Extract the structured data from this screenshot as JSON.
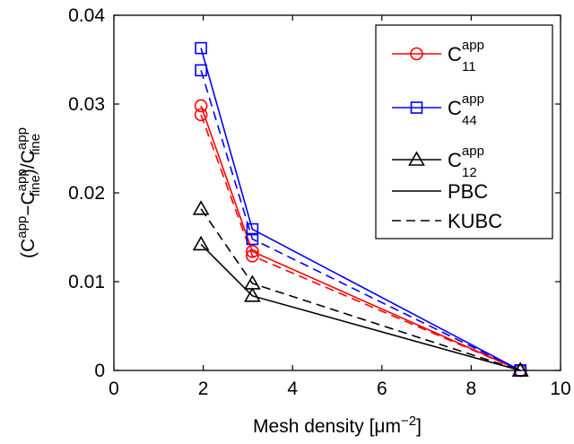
{
  "chart_data": {
    "type": "line",
    "xlabel": "Mesh density [μm",
    "xlabel_sup": "−2",
    "xlabel_end": "]",
    "ylabel_parts": [
      "(C",
      "app",
      "−C",
      "app",
      "fine",
      ")/C",
      "app",
      "fine"
    ],
    "xlim": [
      0,
      10
    ],
    "ylim": [
      0,
      0.04
    ],
    "xticks": [
      "0",
      "2",
      "4",
      "6",
      "8",
      "10"
    ],
    "yticks": [
      "0",
      "0.01",
      "0.02",
      "0.03",
      "0.04"
    ],
    "grid": false,
    "legend_position": "top-right",
    "series": [
      {
        "name": "C11",
        "legend_main": "C",
        "legend_sup": "app",
        "legend_sub": "11",
        "color": "#ff0000",
        "marker": "circle",
        "linestyle": "solid",
        "bc": "PBC",
        "x": [
          1.95,
          3.1,
          9.1
        ],
        "y": [
          0.0298,
          0.0134,
          0.0
        ]
      },
      {
        "name": "C11",
        "color": "#ff0000",
        "marker": "circle",
        "linestyle": "dashed",
        "bc": "KUBC",
        "x": [
          1.95,
          3.1,
          9.1
        ],
        "y": [
          0.0288,
          0.0129,
          0.0
        ]
      },
      {
        "name": "C44",
        "legend_main": "C",
        "legend_sup": "app",
        "legend_sub": "44",
        "color": "#0000ff",
        "marker": "square",
        "linestyle": "solid",
        "bc": "PBC",
        "x": [
          1.95,
          3.1,
          9.1
        ],
        "y": [
          0.0363,
          0.0159,
          0.0
        ]
      },
      {
        "name": "C44",
        "color": "#0000ff",
        "marker": "square",
        "linestyle": "dashed",
        "bc": "KUBC",
        "x": [
          1.95,
          3.1,
          9.1
        ],
        "y": [
          0.0338,
          0.0148,
          0.0
        ]
      },
      {
        "name": "C12",
        "legend_main": "C",
        "legend_sup": "app",
        "legend_sub": "12",
        "color": "#000000",
        "marker": "triangle",
        "linestyle": "solid",
        "bc": "PBC",
        "x": [
          1.95,
          3.1,
          9.1
        ],
        "y": [
          0.0142,
          0.0084,
          0.0
        ]
      },
      {
        "name": "C12",
        "color": "#000000",
        "marker": "triangle",
        "linestyle": "dashed",
        "bc": "KUBC",
        "x": [
          1.95,
          3.1,
          9.1
        ],
        "y": [
          0.0182,
          0.0098,
          0.0
        ]
      }
    ],
    "legend_lines": [
      {
        "label": "PBC",
        "linestyle": "solid"
      },
      {
        "label": "KUBC",
        "linestyle": "dashed"
      }
    ]
  }
}
